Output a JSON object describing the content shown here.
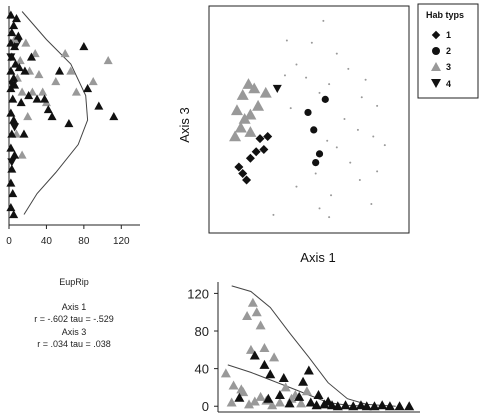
{
  "chart_data": [
    {
      "panel": "top-left",
      "type": "scatter",
      "xlim": [
        0,
        140
      ],
      "x_ticks": [
        "0",
        "40",
        "80",
        "120"
      ],
      "ylim": [
        -3,
        3
      ],
      "grid": false,
      "series": [
        {
          "group": "4",
          "marker": "triangle-down",
          "color": "#111111",
          "points": [
            [
              2,
              1.6
            ],
            [
              4,
              0.8
            ],
            [
              6,
              -0.4
            ],
            [
              9,
              2.0
            ],
            [
              3,
              -1.4
            ]
          ]
        },
        {
          "group": "3",
          "marker": "triangle",
          "color": "#999999",
          "points": [
            [
              6,
              2.1
            ],
            [
              9,
              1.0
            ],
            [
              12,
              1.5
            ],
            [
              14,
              0.6
            ],
            [
              18,
              2.0
            ],
            [
              22,
              1.2
            ],
            [
              25,
              0.6
            ],
            [
              28,
              1.7
            ],
            [
              32,
              1.1
            ],
            [
              36,
              0.6
            ],
            [
              40,
              0.3
            ],
            [
              50,
              0.9
            ],
            [
              60,
              1.7
            ],
            [
              66,
              1.2
            ],
            [
              72,
              0.6
            ],
            [
              90,
              0.9
            ],
            [
              106,
              1.5
            ],
            [
              8,
              -0.6
            ],
            [
              14,
              -1.2
            ],
            [
              20,
              -0.1
            ]
          ]
        },
        {
          "group": "1",
          "marker": "triangle",
          "color": "#111111",
          "points": [
            [
              2,
              2.8
            ],
            [
              5,
              2.5
            ],
            [
              3,
              2.3
            ],
            [
              8,
              2.7
            ],
            [
              2,
              2.0
            ],
            [
              6,
              1.9
            ],
            [
              3,
              1.6
            ],
            [
              2,
              1.2
            ],
            [
              5,
              1.0
            ],
            [
              7,
              1.4
            ],
            [
              2,
              0.7
            ],
            [
              4,
              0.4
            ],
            [
              6,
              0.8
            ],
            [
              2,
              0.0
            ],
            [
              5,
              -0.2
            ],
            [
              3,
              -0.6
            ],
            [
              2,
              -1.0
            ],
            [
              6,
              -1.2
            ],
            [
              3,
              -1.6
            ],
            [
              2,
              -2.0
            ],
            [
              4,
              -2.3
            ],
            [
              2,
              -2.7
            ],
            [
              5,
              -2.9
            ],
            [
              10,
              2.2
            ],
            [
              11,
              1.3
            ],
            [
              13,
              0.3
            ],
            [
              17,
              1.2
            ],
            [
              21,
              0.5
            ],
            [
              24,
              1.6
            ],
            [
              30,
              0.4
            ],
            [
              38,
              0.4
            ],
            [
              42,
              0.1
            ],
            [
              46,
              -0.1
            ],
            [
              54,
              1.2
            ],
            [
              64,
              -0.3
            ],
            [
              80,
              1.9
            ],
            [
              84,
              0.7
            ],
            [
              96,
              0.2
            ],
            [
              112,
              -0.1
            ],
            [
              16,
              -0.6
            ]
          ]
        }
      ],
      "fitted_curve": [
        [
          14,
          2.9
        ],
        [
          40,
          2.1
        ],
        [
          66,
          1.4
        ],
        [
          82,
          0.5
        ],
        [
          84,
          -0.2
        ],
        [
          74,
          -0.9
        ],
        [
          50,
          -1.7
        ],
        [
          30,
          -2.3
        ],
        [
          16,
          -2.9
        ]
      ]
    },
    {
      "panel": "top-right",
      "type": "scatter",
      "ylabel": "Axis 3",
      "xlabel": "Axis 1",
      "xlim": [
        0,
        10
      ],
      "ylim": [
        0,
        10
      ],
      "legend": {
        "title": "Hab typs",
        "position": "top-right",
        "entries": [
          {
            "label": "1",
            "marker": "diamond"
          },
          {
            "label": "2",
            "marker": "circle"
          },
          {
            "label": "3",
            "marker": "triangle-gray"
          },
          {
            "label": "4",
            "marker": "triangle-down"
          }
        ]
      },
      "series": [
        {
          "group": "3",
          "marker": "triangle",
          "color": "#999999",
          "points": [
            [
              1.6,
              6.1
            ],
            [
              1.9,
              6.6
            ],
            [
              2.2,
              6.4
            ],
            [
              1.3,
              5.4
            ],
            [
              1.7,
              5.0
            ],
            [
              2.0,
              5.2
            ],
            [
              2.4,
              5.6
            ],
            [
              1.2,
              4.2
            ],
            [
              2.8,
              6.2
            ],
            [
              1.5,
              4.6
            ],
            [
              2.0,
              4.4
            ]
          ]
        },
        {
          "group": "1",
          "marker": "diamond",
          "color": "#111111",
          "points": [
            [
              2.5,
              4.1
            ],
            [
              2.7,
              3.6
            ],
            [
              2.0,
              3.2
            ],
            [
              2.3,
              3.5
            ],
            [
              1.6,
              2.5
            ],
            [
              1.8,
              2.2
            ],
            [
              1.4,
              2.8
            ],
            [
              2.9,
              4.2
            ]
          ]
        },
        {
          "group": "2",
          "marker": "circle",
          "color": "#111111",
          "points": [
            [
              5.0,
              5.3
            ],
            [
              5.3,
              4.5
            ],
            [
              5.6,
              3.4
            ],
            [
              5.4,
              3.0
            ],
            [
              5.9,
              5.9
            ]
          ]
        },
        {
          "group": "4",
          "marker": "triangle-down",
          "color": "#111111",
          "points": [
            [
              3.4,
              6.4
            ]
          ]
        },
        {
          "group": "minor",
          "marker": "dot",
          "color": "#999999",
          "points": [
            [
              5.8,
              9.5
            ],
            [
              3.9,
              8.6
            ],
            [
              5.2,
              8.5
            ],
            [
              6.5,
              8.0
            ],
            [
              4.4,
              7.5
            ],
            [
              7.1,
              7.3
            ],
            [
              8.0,
              6.8
            ],
            [
              6.1,
              6.6
            ],
            [
              7.8,
              6.0
            ],
            [
              8.6,
              5.6
            ],
            [
              4.1,
              5.5
            ],
            [
              6.9,
              5.0
            ],
            [
              7.6,
              4.5
            ],
            [
              8.4,
              4.2
            ],
            [
              9.0,
              3.8
            ],
            [
              6.5,
              3.7
            ],
            [
              7.2,
              3.0
            ],
            [
              8.6,
              2.6
            ],
            [
              5.4,
              2.5
            ],
            [
              7.7,
              2.2
            ],
            [
              4.4,
              1.9
            ],
            [
              6.2,
              1.5
            ],
            [
              5.6,
              0.9
            ],
            [
              3.2,
              0.6
            ],
            [
              6.1,
              0.5
            ],
            [
              8.3,
              1.1
            ],
            [
              3.8,
              7.0
            ],
            [
              4.9,
              6.9
            ],
            [
              5.6,
              6.2
            ],
            [
              6.0,
              4.0
            ]
          ]
        }
      ]
    },
    {
      "panel": "bottom-right",
      "type": "scatter",
      "xlim": [
        0,
        10
      ],
      "ylim": [
        -4,
        130
      ],
      "y_ticks": [
        0,
        40,
        80,
        120
      ],
      "y_tick_labels": [
        "0",
        "40",
        "80",
        "120"
      ],
      "series": [
        {
          "group": "3",
          "marker": "triangle",
          "color": "#999999",
          "points": [
            [
              0.2,
              35
            ],
            [
              0.6,
              22
            ],
            [
              1.1,
              15
            ],
            [
              1.6,
              110
            ],
            [
              1.3,
              96
            ],
            [
              1.8,
              100
            ],
            [
              2.0,
              86
            ],
            [
              2.2,
              62
            ],
            [
              1.5,
              60
            ],
            [
              2.7,
              52
            ],
            [
              1.0,
              18
            ],
            [
              2.0,
              10
            ],
            [
              2.3,
              6
            ],
            [
              3.0,
              4
            ],
            [
              3.6,
              8
            ],
            [
              0.5,
              4
            ],
            [
              1.4,
              2
            ],
            [
              2.6,
              1
            ],
            [
              3.8,
              12
            ],
            [
              4.1,
              3
            ],
            [
              1.7,
              5
            ],
            [
              3.3,
              20
            ],
            [
              4.4,
              16
            ]
          ]
        },
        {
          "group": "1",
          "marker": "triangle",
          "color": "#111111",
          "points": [
            [
              1.7,
              54
            ],
            [
              2.2,
              44
            ],
            [
              2.5,
              34
            ],
            [
              3.2,
              30
            ],
            [
              4.2,
              26
            ],
            [
              4.5,
              38
            ],
            [
              0.9,
              9
            ],
            [
              2.4,
              8
            ],
            [
              3.5,
              3
            ],
            [
              4.6,
              4
            ],
            [
              4.9,
              1
            ],
            [
              5.3,
              2
            ],
            [
              5.7,
              1
            ],
            [
              6.0,
              0
            ],
            [
              6.4,
              1
            ],
            [
              6.8,
              0
            ],
            [
              7.2,
              1
            ],
            [
              7.5,
              0
            ],
            [
              7.9,
              0
            ],
            [
              8.3,
              1
            ],
            [
              8.7,
              0
            ],
            [
              9.2,
              0
            ],
            [
              9.7,
              0
            ],
            [
              5.0,
              12
            ],
            [
              4.0,
              10
            ],
            [
              3.0,
              12
            ],
            [
              5.5,
              5
            ]
          ]
        }
      ],
      "fitted_curves": [
        [
          [
            0.5,
            128
          ],
          [
            1.5,
            122
          ],
          [
            2.5,
            105
          ],
          [
            3.5,
            78
          ],
          [
            4.5,
            52
          ],
          [
            5.5,
            25
          ],
          [
            6.5,
            8
          ],
          [
            7.5,
            2
          ],
          [
            9.0,
            0
          ]
        ],
        [
          [
            0.3,
            44
          ],
          [
            1.5,
            36
          ],
          [
            2.5,
            28
          ],
          [
            3.5,
            20
          ],
          [
            4.5,
            12
          ],
          [
            5.5,
            4
          ],
          [
            6.5,
            1
          ],
          [
            7.5,
            0
          ]
        ]
      ]
    }
  ],
  "stats": {
    "title": "EupRip",
    "axis1": "Axis 1",
    "axis1_values": "r = -.602  tau = -.529",
    "axis3": "Axis 3",
    "axis3_values": "r = .034  tau = .038"
  }
}
